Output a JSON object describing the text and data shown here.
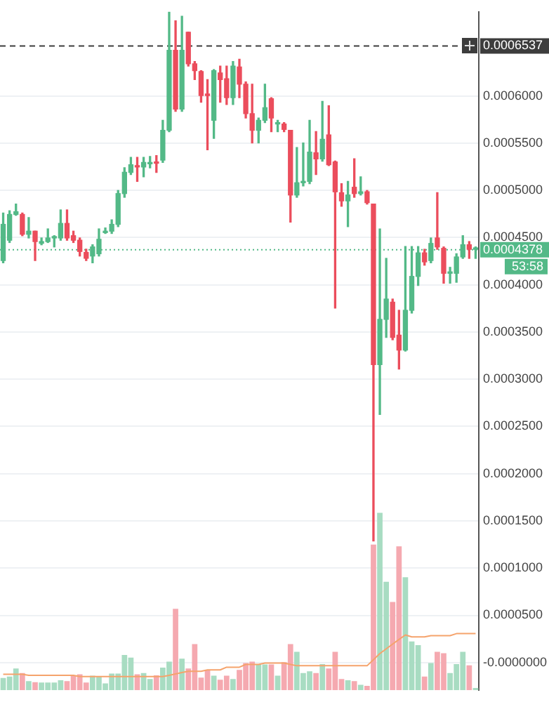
{
  "chart_data": {
    "type": "candlestick",
    "categories": [
      null,
      null,
      null,
      null,
      null,
      null,
      null,
      null,
      null,
      null,
      null,
      null,
      null,
      null,
      null,
      null,
      null,
      null,
      null,
      null,
      null,
      null,
      null,
      null,
      null,
      null,
      null,
      null,
      null,
      null,
      null,
      null,
      null,
      null,
      null,
      null,
      null,
      null,
      null,
      null,
      null,
      null,
      null,
      null,
      null,
      null,
      null,
      null,
      null,
      null,
      null,
      null,
      null,
      null,
      null,
      null,
      null,
      null,
      null,
      null,
      null,
      null,
      null,
      null,
      null,
      null,
      null,
      null,
      null,
      null,
      null,
      null,
      null,
      null,
      null
    ],
    "ohlc": [
      [
        0.0004257,
        0.000476,
        0.0004233,
        0.000464
      ],
      [
        0.0004472,
        0.0004784,
        0.0004448,
        0.0004745
      ],
      [
        0.0004745,
        0.0004855,
        0.0004736,
        0.0004774
      ],
      [
        0.0004745,
        0.000476,
        0.000452,
        0.0004535
      ],
      [
        0.0004535,
        0.0004712,
        0.0004496,
        0.0004568
      ],
      [
        0.0004568,
        0.0004568,
        0.0004257,
        0.0004458
      ],
      [
        0.0004439,
        0.0004496,
        0.0004424,
        0.0004458
      ],
      [
        0.0004458,
        0.0004592,
        0.0004448,
        0.0004496
      ],
      [
        0.0004511,
        0.000452,
        0.0004401,
        0.0004511
      ],
      [
        0.0004496,
        0.0004793,
        0.0004472,
        0.000465
      ],
      [
        0.000465,
        0.0004793,
        0.0004472,
        0.0004496
      ],
      [
        0.000452,
        0.0004568,
        0.0004448,
        0.0004472
      ],
      [
        0.0004472,
        0.0004496,
        0.0004305,
        0.0004353
      ],
      [
        0.0004343,
        0.0004377,
        0.0004257,
        0.0004281
      ],
      [
        0.0004305,
        0.0004424,
        0.0004233,
        0.0004401
      ],
      [
        0.0004329,
        0.0004592,
        0.0004305,
        0.0004482
      ],
      [
        0.0004568,
        0.0004602,
        0.0004544,
        0.0004568
      ],
      [
        0.0004568,
        0.0004688,
        0.0004544,
        0.000464
      ],
      [
        0.000464,
        0.0004999,
        0.0004616,
        0.0004966
      ],
      [
        0.0004966,
        0.0005239,
        0.0004927,
        0.0005191
      ],
      [
        0.0005191,
        0.0005349,
        0.0005167,
        0.0005272
      ],
      [
        0.0005263,
        0.0005349,
        0.0005095,
        0.0005248
      ],
      [
        0.0005248,
        0.0005349,
        0.0005143,
        0.0005296
      ],
      [
        0.0005296,
        0.0005358,
        0.0005239,
        0.0005296
      ],
      [
        0.0005301,
        0.0005368,
        0.0005191,
        0.0005287
      ],
      [
        0.000532,
        0.0005742,
        0.0005296,
        0.0005636
      ],
      [
        0.0005636,
        0.0006891,
        0.0005622,
        0.0006484
      ],
      [
        0.0006484,
        0.0006795,
        0.0005837,
        0.0005861
      ],
      [
        0.0005861,
        0.0006843,
        0.0005837,
        0.0006484
      ],
      [
        0.0006675,
        0.0006675,
        0.0006316,
        0.000634
      ],
      [
        0.000634,
        0.0006364,
        0.0006173,
        0.0006268
      ],
      [
        0.0006259,
        0.0006268,
        0.0005933,
        0.0006005
      ],
      [
        0.0006019,
        0.0006173,
        0.000543,
        0.0006005
      ],
      [
        0.0005742,
        0.0006278,
        0.000555,
        0.0006268
      ],
      [
        0.0006244,
        0.0006316,
        0.0005933,
        0.0006173
      ],
      [
        0.0006182,
        0.0006316,
        0.0005909,
        0.0005981
      ],
      [
        0.0005981,
        0.0006364,
        0.0005909,
        0.0006316
      ],
      [
        0.0006307,
        0.0006388,
        0.0005981,
        0.0006125
      ],
      [
        0.0006125,
        0.0006149,
        0.0005766,
        0.0005813
      ],
      [
        0.0005813,
        0.0006125,
        0.0005502,
        0.0005636
      ],
      [
        0.0005636,
        0.0005766,
        0.0005502,
        0.0005742
      ],
      [
        0.0005742,
        0.0006125,
        0.0005718,
        0.0005876
      ],
      [
        0.0005971,
        0.0005981,
        0.0005622,
        0.0005766
      ],
      [
        0.0005718,
        0.0005742,
        0.0005622,
        0.0005718
      ],
      [
        0.0005703,
        0.0005718,
        0.0005622,
        0.0005646
      ],
      [
        0.0005636,
        0.0005636,
        0.0004664,
        0.0004951
      ],
      [
        0.0004951,
        0.0005454,
        0.0004927,
        0.0005081
      ],
      [
        0.0005081,
        0.0005502,
        0.0005047,
        0.0005095
      ],
      [
        0.0005095,
        0.0005742,
        0.0005071,
        0.0005406
      ],
      [
        0.0005397,
        0.0005622,
        0.0005167,
        0.0005334
      ],
      [
        0.0005334,
        0.0005943,
        0.000531,
        0.0005541
      ],
      [
        0.0005588,
        0.0005895,
        0.0005263,
        0.0005272
      ],
      [
        0.0005301,
        0.000531,
        0.0003754,
        0.0004985
      ],
      [
        0.0004975,
        0.0005071,
        0.0004832,
        0.0004889
      ],
      [
        0.0004889,
        0.0005095,
        0.0004616,
        0.0004951
      ],
      [
        0.0005033,
        0.0005334,
        0.0004927,
        0.0004966
      ],
      [
        0.0004966,
        0.0005143,
        0.0004951,
        0.0004985
      ],
      [
        0.0004985,
        0.0004999,
        0.0004855,
        0.000487
      ],
      [
        0.0004855,
        0.0004855,
        0.0001287,
        0.0003155
      ],
      [
        0.0003155,
        0.0004592,
        0.0002628,
        0.0003634
      ],
      [
        0.0003634,
        0.000428,
        0.0003443,
        0.0003849
      ],
      [
        0.0003816,
        0.0003849,
        0.0003418,
        0.0003443
      ],
      [
        0.0003467,
        0.000373,
        0.0003108,
        0.0003309
      ],
      [
        0.0003309,
        0.0004405,
        0.0003299,
        0.000373
      ],
      [
        0.000373,
        0.0004405,
        0.0003701,
        0.0004089
      ],
      [
        0.0004089,
        0.0004405,
        0.0003993,
        0.0004338
      ],
      [
        0.0004338,
        0.0004376,
        0.0004208,
        0.0004243
      ],
      [
        0.0004257,
        0.0004496,
        0.0004233,
        0.0004438
      ],
      [
        0.0004496,
        0.0004976,
        0.0004376,
        0.0004401
      ],
      [
        0.0004386,
        0.0004401,
        0.0004017,
        0.0004122
      ],
      [
        0.0004122,
        0.0004185,
        0.0004017,
        0.0004137
      ],
      [
        0.0004122,
        0.0004329,
        0.0004027,
        0.0004295
      ],
      [
        0.0004295,
        0.000452,
        0.000428,
        0.0004424
      ],
      [
        0.0004424,
        0.0004458,
        0.000428,
        0.0004376
      ],
      [
        0.0004376,
        0.0004401,
        0.000428,
        0.0004378
      ]
    ],
    "colors": [
      "#53b987",
      "#53b987",
      "#53b987",
      "#eb4d5c",
      "#53b987",
      "#eb4d5c",
      "#53b987",
      "#53b987",
      "#53b987",
      "#53b987",
      "#eb4d5c",
      "#eb4d5c",
      "#eb4d5c",
      "#eb4d5c",
      "#53b987",
      "#53b987",
      "#53b987",
      "#53b987",
      "#53b987",
      "#53b987",
      "#53b987",
      "#eb4d5c",
      "#53b987",
      "#53b987",
      "#eb4d5c",
      "#53b987",
      "#53b987",
      "#eb4d5c",
      "#53b987",
      "#eb4d5c",
      "#eb4d5c",
      "#eb4d5c",
      "#eb4d5c",
      "#53b987",
      "#eb4d5c",
      "#eb4d5c",
      "#53b987",
      "#eb4d5c",
      "#eb4d5c",
      "#eb4d5c",
      "#53b987",
      "#53b987",
      "#eb4d5c",
      "#53b987",
      "#eb4d5c",
      "#eb4d5c",
      "#53b987",
      "#53b987",
      "#53b987",
      "#eb4d5c",
      "#53b987",
      "#eb4d5c",
      "#eb4d5c",
      "#eb4d5c",
      "#53b987",
      "#eb4d5c",
      "#53b987",
      "#eb4d5c",
      "#eb4d5c",
      "#53b987",
      "#53b987",
      "#eb4d5c",
      "#eb4d5c",
      "#53b987",
      "#53b987",
      "#53b987",
      "#eb4d5c",
      "#53b987",
      "#eb4d5c",
      "#eb4d5c",
      "#53b987",
      "#53b987",
      "#53b987",
      "#eb4d5c",
      "#53b987"
    ],
    "series": [
      {
        "type": "bar",
        "color": "#a8dcc2",
        "colors": [
          "#a8dcc2",
          "#a8dcc2",
          "#a8dcc2",
          "#f5a9b0",
          "#a8dcc2",
          "#f5a9b0",
          "#a8dcc2",
          "#a8dcc2",
          "#a8dcc2",
          "#a8dcc2",
          "#f5a9b0",
          "#f5a9b0",
          "#f5a9b0",
          "#f5a9b0",
          "#a8dcc2",
          "#a8dcc2",
          "#a8dcc2",
          "#a8dcc2",
          "#a8dcc2",
          "#a8dcc2",
          "#a8dcc2",
          "#f5a9b0",
          "#a8dcc2",
          "#a8dcc2",
          "#f5a9b0",
          "#a8dcc2",
          "#a8dcc2",
          "#f5a9b0",
          "#a8dcc2",
          "#f5a9b0",
          "#f5a9b0",
          "#f5a9b0",
          "#f5a9b0",
          "#a8dcc2",
          "#f5a9b0",
          "#f5a9b0",
          "#a8dcc2",
          "#f5a9b0",
          "#f5a9b0",
          "#f5a9b0",
          "#a8dcc2",
          "#a8dcc2",
          "#f5a9b0",
          "#a8dcc2",
          "#f5a9b0",
          "#f5a9b0",
          "#a8dcc2",
          "#a8dcc2",
          "#a8dcc2",
          "#f5a9b0",
          "#a8dcc2",
          "#f5a9b0",
          "#f5a9b0",
          "#f5a9b0",
          "#a8dcc2",
          "#f5a9b0",
          "#a8dcc2",
          "#f5a9b0",
          "#f5a9b0",
          "#a8dcc2",
          "#a8dcc2",
          "#f5a9b0",
          "#f5a9b0",
          "#a8dcc2",
          "#a8dcc2",
          "#a8dcc2",
          "#f5a9b0",
          "#a8dcc2",
          "#f5a9b0",
          "#f5a9b0",
          "#a8dcc2",
          "#a8dcc2",
          "#a8dcc2",
          "#f5a9b0",
          "#a8dcc2"
        ],
        "values": [
          1.29e-05,
          1.44e-05,
          2.3e-05,
          1.82e-05,
          9.6e-06,
          8.6e-06,
          8.2e-06,
          8.2e-06,
          8.2e-06,
          1.05e-05,
          9.6e-06,
          1.58e-05,
          1.68e-05,
          8.2e-06,
          1.54e-05,
          1.44e-05,
          7.2e-06,
          1.77e-05,
          1.77e-05,
          3.74e-05,
          3.45e-05,
          1.68e-05,
          1.82e-05,
          1.19e-05,
          1.58e-05,
          2.4e-05,
          3.02e-05,
          8.62e-05,
          3.35e-05,
          2.3e-05,
          4.89e-05,
          1.34e-05,
          2.16e-05,
          1.54e-05,
          1.11e-05,
          1.54e-05,
          1.19e-05,
          2.16e-05,
          2.87e-05,
          3.02e-05,
          2.73e-05,
          2.73e-05,
          2.73e-05,
          1.54e-05,
          2.97e-05,
          4.89e-05,
          4.07e-05,
          1.82e-05,
          2.01e-05,
          1.82e-05,
          2.77e-05,
          2.3e-05,
          4.07e-05,
          1.19e-05,
          1.05e-05,
          9.6e-06,
          5.7e-06,
          4.7e-06,
          0.0001542,
          0.0001878,
          0.0001149,
          9.34e-05,
          0.0001523,
          0.0001197,
          5.17e-05,
          4.78e-05,
          1.44e-05,
          2.87e-05,
          4.07e-05,
          3.92e-05,
          1.82e-05,
          2.77e-05,
          4.07e-05,
          2.63e-05,
          2.4e-06
        ],
        "base": [
          -2.93e-05,
          -2.93e-05,
          -2.93e-05,
          -2.93e-05,
          -2.93e-05,
          -2.93e-05,
          -2.93e-05,
          -2.93e-05,
          -2.93e-05,
          -2.93e-05,
          -2.93e-05,
          -2.93e-05,
          -2.93e-05,
          -2.93e-05,
          -2.93e-05,
          -2.93e-05,
          -2.93e-05,
          -2.93e-05,
          -2.93e-05,
          -2.93e-05,
          -2.93e-05,
          -2.93e-05,
          -2.93e-05,
          -2.93e-05,
          -2.93e-05,
          -2.93e-05,
          -2.93e-05,
          -2.93e-05,
          -2.93e-05,
          -2.93e-05,
          -2.93e-05,
          -2.93e-05,
          -2.93e-05,
          -2.93e-05,
          -2.93e-05,
          -2.93e-05,
          -2.93e-05,
          -2.93e-05,
          -2.93e-05,
          -2.93e-05,
          -2.93e-05,
          -2.93e-05,
          -2.93e-05,
          -2.93e-05,
          -2.93e-05,
          -2.93e-05,
          -2.93e-05,
          -2.93e-05,
          -2.93e-05,
          -2.93e-05,
          -2.93e-05,
          -2.93e-05,
          -2.93e-05,
          -2.93e-05,
          -2.93e-05,
          -2.93e-05,
          -2.93e-05,
          -2.93e-05,
          -2.93e-05,
          -2.93e-05,
          -2.93e-05,
          -2.93e-05,
          -2.93e-05,
          -2.93e-05,
          -2.93e-05,
          -2.93e-05,
          -2.93e-05,
          -2.93e-05,
          -2.93e-05,
          -2.93e-05,
          -2.93e-05,
          -2.93e-05,
          -2.93e-05,
          -2.93e-05,
          -2.93e-05
        ]
      },
      {
        "type": "line",
        "color": "#f5a36c",
        "values": [
          -1.25e-05,
          -1.25e-05,
          -1.25e-05,
          -1.25e-05,
          -1.35e-05,
          -1.35e-05,
          -1.35e-05,
          -1.35e-05,
          -1.35e-05,
          -1.35e-05,
          -1.35e-05,
          -1.35e-05,
          -1.49e-05,
          -1.49e-05,
          -1.49e-05,
          -1.49e-05,
          -1.49e-05,
          -1.49e-05,
          -1.49e-05,
          -1.49e-05,
          -1.49e-05,
          -1.49e-05,
          -1.49e-05,
          -1.49e-05,
          -1.49e-05,
          -1.49e-05,
          -1.35e-05,
          -1.2e-05,
          -1.06e-05,
          -9.2e-06,
          -9.2e-06,
          -9.2e-06,
          -7.8e-06,
          -7.8e-06,
          -7.8e-06,
          -4.9e-06,
          -4.9e-06,
          -4.9e-06,
          -2e-06,
          -2e-06,
          -2e-06,
          -6e-07,
          -6e-07,
          -6e-07,
          -6e-07,
          -2e-06,
          -3.4e-06,
          -3.4e-06,
          -3.4e-06,
          -3.4e-06,
          -3.4e-06,
          -3.4e-06,
          -3.4e-06,
          -3.4e-06,
          -3.4e-06,
          -3.4e-06,
          -3.4e-06,
          -3.4e-06,
          3e-06,
          9.5e-06,
          1.45e-05,
          1.95e-05,
          2.45e-05,
          2.92e-05,
          2.72e-05,
          2.72e-05,
          2.72e-05,
          2.85e-05,
          2.85e-05,
          2.85e-05,
          2.85e-05,
          3.06e-05,
          3.06e-05,
          3.06e-05,
          3.06e-05
        ]
      }
    ],
    "ylim": [
      -2.93e-05,
      0.0006891
    ],
    "yticks": [
      {
        "value": 0,
        "label": "-0.0000000"
      },
      {
        "value": 5e-05,
        "label": "0.0000500"
      },
      {
        "value": 0.0001,
        "label": "0.0001000"
      },
      {
        "value": 0.00015,
        "label": "0.0001500"
      },
      {
        "value": 0.0002,
        "label": "0.0002000"
      },
      {
        "value": 0.00025,
        "label": "0.0002500"
      },
      {
        "value": 0.0003,
        "label": "0.0003000"
      },
      {
        "value": 0.00035,
        "label": "0.0003500"
      },
      {
        "value": 0.0004,
        "label": "0.0004000"
      },
      {
        "value": 0.00045,
        "label": "0.0004500"
      },
      {
        "value": 0.0005,
        "label": "0.0005000"
      },
      {
        "value": 0.00055,
        "label": "0.0005500"
      },
      {
        "value": 0.0006,
        "label": "0.0006000"
      }
    ],
    "ref_lines": [
      {
        "axis": "y",
        "value": 0.0006537,
        "label": "0.0006537",
        "color": "#3d3d3d",
        "line_style": "dashed"
      },
      {
        "axis": "y",
        "value": 0.0004378,
        "label": "0.0004378",
        "color": "#53b987",
        "line_style": "dotted"
      }
    ],
    "annotations": [
      "53:58"
    ],
    "grid": "y",
    "legend": false,
    "tick_labels": "y",
    "marker": "none"
  }
}
